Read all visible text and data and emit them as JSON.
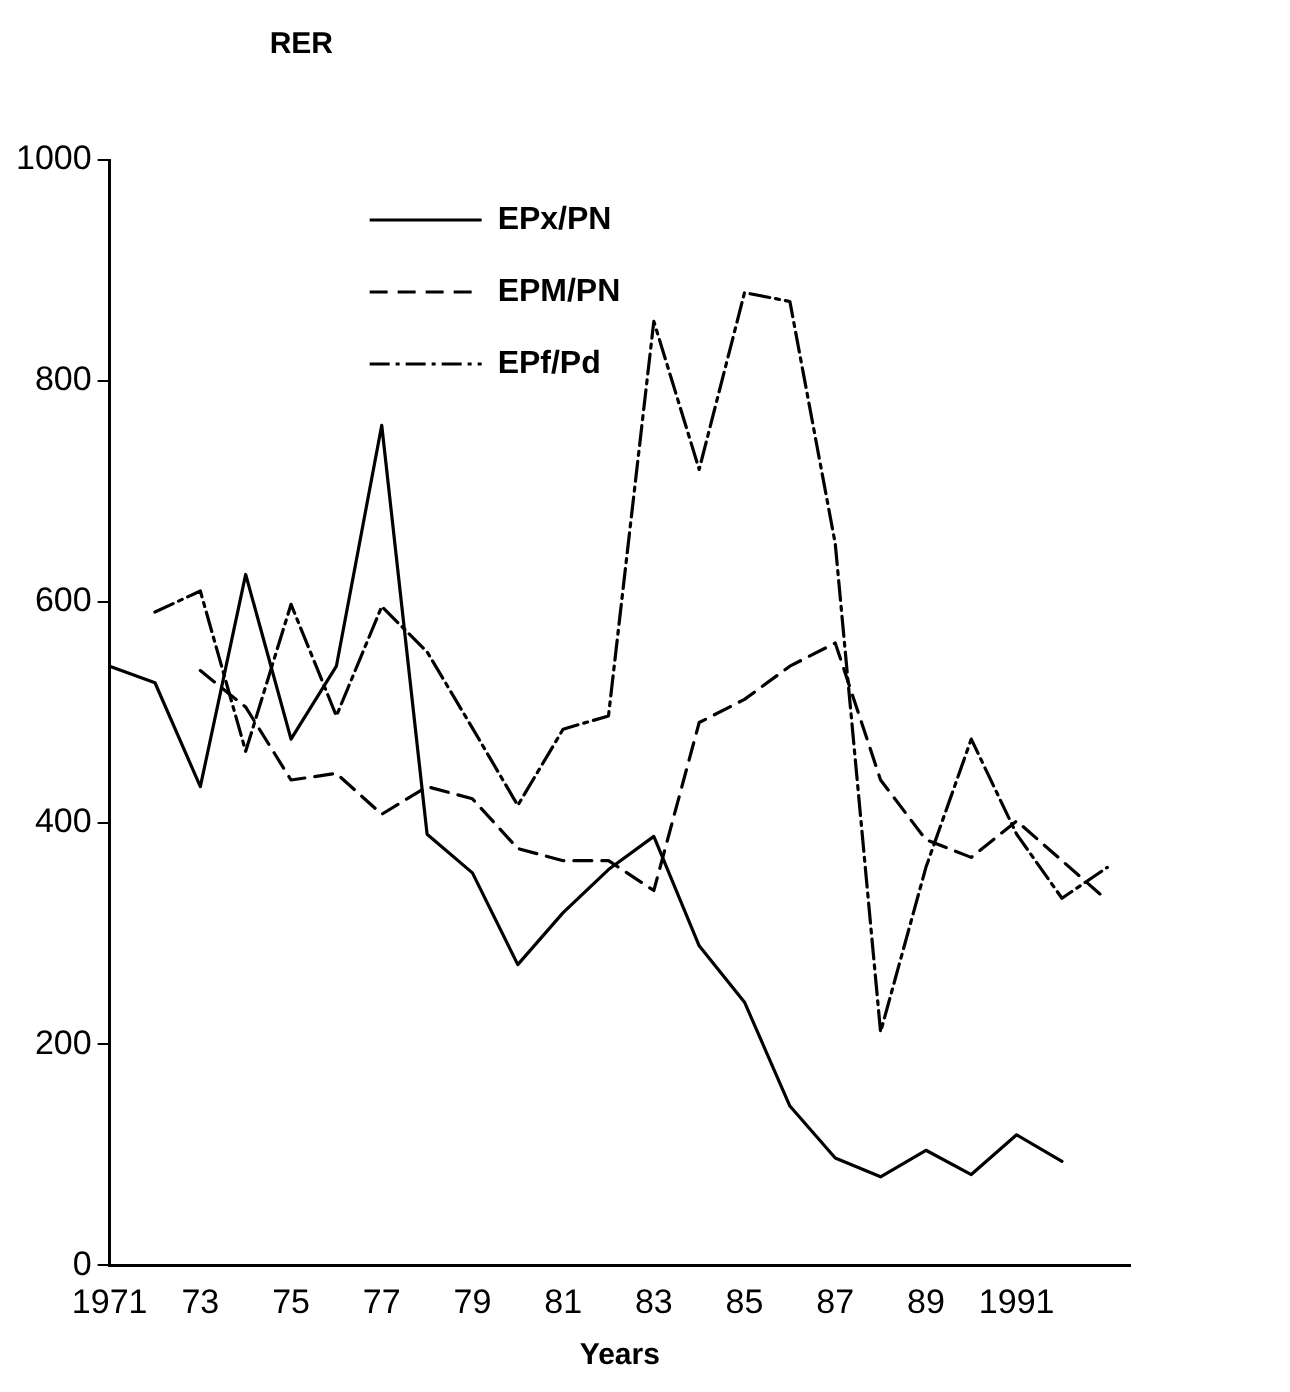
{
  "chart_data": {
    "type": "line",
    "ylabel": "RER",
    "xlabel": "Years",
    "legend": "top left",
    "grid": false,
    "marker": "none",
    "xlim": [
      1971,
      1993.5
    ],
    "xticks": [
      1971,
      {
        "value": 1973,
        "label": "73"
      },
      {
        "value": 1975,
        "label": "75"
      },
      {
        "value": 1977,
        "label": "77"
      },
      {
        "value": 1979,
        "label": "79"
      },
      {
        "value": 1981,
        "label": "81"
      },
      {
        "value": 1983,
        "label": "83"
      },
      {
        "value": 1985,
        "label": "85"
      },
      {
        "value": 1987,
        "label": "87"
      },
      {
        "value": 1989,
        "label": "89"
      },
      1991
    ],
    "ylim": [
      0,
      1000
    ],
    "yticks": [
      0,
      200,
      400,
      600,
      800,
      1000
    ],
    "series": [
      {
        "name": "EPx/PN",
        "color": "#000000",
        "line_style": "solid",
        "x": [
          1971,
          1972,
          1973,
          1974,
          1975,
          1976,
          1977,
          1978,
          1979,
          1980,
          1981,
          1982,
          1983,
          1984,
          1985,
          1986,
          1987,
          1988,
          1989,
          1990,
          1991,
          1992
        ],
        "values": [
          542,
          527,
          433,
          625,
          476,
          542,
          760,
          390,
          355,
          272,
          319,
          358,
          388,
          289,
          238,
          144,
          97,
          80,
          104,
          82,
          118,
          94
        ]
      },
      {
        "name": "EPM/PN",
        "color": "#000000",
        "line_style": "dashed",
        "x": [
          1973,
          1974,
          1975,
          1976,
          1977,
          1978,
          1979,
          1980,
          1981,
          1982,
          1983,
          1984,
          1985,
          1986,
          1987,
          1988,
          1989,
          1990,
          1991,
          1992,
          1993
        ],
        "values": [
          538,
          505,
          439,
          445,
          408,
          433,
          422,
          377,
          366,
          366,
          339,
          491,
          512,
          542,
          563,
          439,
          385,
          369,
          402,
          366,
          330
        ]
      },
      {
        "name": "EPf/Pd",
        "color": "#000000",
        "line_style": "dashdot",
        "x": [
          1972,
          1973,
          1974,
          1975,
          1976,
          1977,
          1978,
          1979,
          1980,
          1981,
          1982,
          1983,
          1984,
          1985,
          1986,
          1987,
          1988,
          1989,
          1990,
          1991,
          1992,
          1993
        ],
        "values": [
          591,
          610,
          465,
          598,
          497,
          596,
          555,
          486,
          416,
          485,
          497,
          854,
          720,
          880,
          872,
          653,
          211,
          360,
          476,
          390,
          332,
          360
        ]
      }
    ]
  }
}
